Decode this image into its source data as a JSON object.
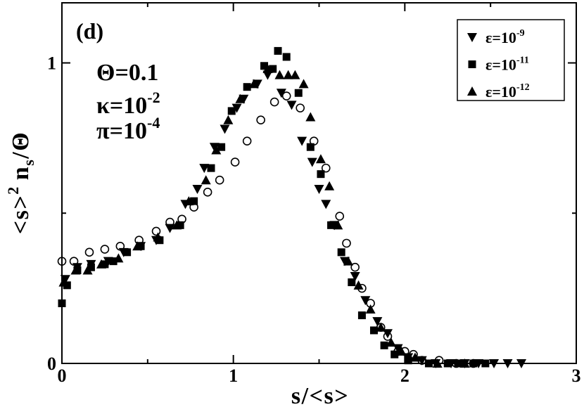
{
  "chart_data": {
    "type": "scatter",
    "xlabel": "s/<s>",
    "ylabel": {
      "part1": "<s>",
      "sup": "2",
      "part2": "n",
      "sub": "s",
      "part3": "/Θ"
    },
    "xlim": [
      0,
      3
    ],
    "ylim": [
      0,
      1.2
    ],
    "xticks": [
      {
        "value": 0,
        "label": "0"
      },
      {
        "value": 1,
        "label": "1"
      },
      {
        "value": 2,
        "label": "2"
      },
      {
        "value": 3,
        "label": "3"
      }
    ],
    "yticks": [
      {
        "value": 0,
        "label": "0"
      },
      {
        "value": 1,
        "label": "1"
      }
    ],
    "x_minor_ticks": [
      0.5,
      1.5,
      2.5
    ],
    "y_minor_ticks": [
      0.5
    ],
    "grid": false,
    "legend_position": "top-right",
    "marker_color": "#000000",
    "annotations": {
      "panel_label": "(d)",
      "theta": "Θ=0.1",
      "kappa": {
        "base": "κ=10",
        "exponent": "-2"
      },
      "pi": {
        "base": "π=10",
        "exponent": "-4"
      }
    },
    "series": [
      {
        "marker": "triangle-down",
        "label": {
          "base": "ε=10",
          "sup": "-9"
        },
        "points": [
          [
            0.02,
            0.28
          ],
          [
            0.09,
            0.32
          ],
          [
            0.17,
            0.33
          ],
          [
            0.27,
            0.34
          ],
          [
            0.36,
            0.37
          ],
          [
            0.46,
            0.39
          ],
          [
            0.55,
            0.41
          ],
          [
            0.63,
            0.45
          ],
          [
            0.72,
            0.53
          ],
          [
            0.79,
            0.58
          ],
          [
            0.83,
            0.65
          ],
          [
            0.89,
            0.72
          ],
          [
            0.95,
            0.78
          ],
          [
            1.02,
            0.85
          ],
          [
            1.06,
            0.88
          ],
          [
            1.14,
            0.93
          ],
          [
            1.2,
            0.96
          ],
          [
            1.28,
            0.9
          ],
          [
            1.34,
            0.86
          ],
          [
            1.4,
            0.74
          ],
          [
            1.46,
            0.67
          ],
          [
            1.5,
            0.58
          ],
          [
            1.54,
            0.53
          ],
          [
            1.59,
            0.46
          ],
          [
            1.65,
            0.34
          ],
          [
            1.71,
            0.29
          ],
          [
            1.77,
            0.21
          ],
          [
            1.84,
            0.14
          ],
          [
            1.9,
            0.1
          ],
          [
            1.96,
            0.05
          ],
          [
            2.02,
            0.02
          ],
          [
            2.1,
            0.01
          ],
          [
            2.18,
            0.0
          ],
          [
            2.27,
            0.0
          ],
          [
            2.35,
            0.0
          ],
          [
            2.43,
            0.0
          ],
          [
            2.52,
            0.0
          ],
          [
            2.6,
            0.0
          ],
          [
            2.68,
            0.0
          ]
        ]
      },
      {
        "marker": "square",
        "label": {
          "base": "ε=10",
          "sup": "-11"
        },
        "points": [
          [
            0.0,
            0.2
          ],
          [
            0.03,
            0.26
          ],
          [
            0.09,
            0.31
          ],
          [
            0.17,
            0.32
          ],
          [
            0.25,
            0.33
          ],
          [
            0.3,
            0.34
          ],
          [
            0.38,
            0.37
          ],
          [
            0.46,
            0.39
          ],
          [
            0.57,
            0.41
          ],
          [
            0.69,
            0.46
          ],
          [
            0.77,
            0.54
          ],
          [
            0.87,
            0.65
          ],
          [
            0.93,
            0.72
          ],
          [
            0.99,
            0.84
          ],
          [
            1.08,
            0.92
          ],
          [
            1.18,
            0.99
          ],
          [
            1.23,
            0.98
          ],
          [
            1.26,
            1.04
          ],
          [
            1.31,
            1.02
          ],
          [
            1.38,
            0.9
          ],
          [
            1.45,
            0.72
          ],
          [
            1.51,
            0.63
          ],
          [
            1.57,
            0.46
          ],
          [
            1.63,
            0.37
          ],
          [
            1.69,
            0.27
          ],
          [
            1.75,
            0.16
          ],
          [
            1.82,
            0.11
          ],
          [
            1.88,
            0.06
          ],
          [
            1.94,
            0.03
          ],
          [
            2.02,
            0.01
          ],
          [
            2.14,
            0.0
          ],
          [
            2.25,
            0.0
          ],
          [
            2.31,
            0.0
          ],
          [
            2.4,
            0.0
          ],
          [
            2.47,
            0.0
          ]
        ]
      },
      {
        "marker": "triangle-up",
        "label": {
          "base": "ε=10",
          "sup": "-12"
        },
        "points": [
          [
            0.01,
            0.27
          ],
          [
            0.08,
            0.31
          ],
          [
            0.15,
            0.31
          ],
          [
            0.23,
            0.33
          ],
          [
            0.33,
            0.35
          ],
          [
            0.44,
            0.39
          ],
          [
            0.56,
            0.42
          ],
          [
            0.67,
            0.46
          ],
          [
            0.74,
            0.54
          ],
          [
            0.84,
            0.61
          ],
          [
            0.9,
            0.71
          ],
          [
            0.97,
            0.81
          ],
          [
            1.04,
            0.88
          ],
          [
            1.12,
            0.93
          ],
          [
            1.2,
            0.98
          ],
          [
            1.27,
            0.96
          ],
          [
            1.32,
            0.96
          ],
          [
            1.36,
            0.96
          ],
          [
            1.41,
            0.93
          ],
          [
            1.45,
            0.82
          ],
          [
            1.51,
            0.68
          ],
          [
            1.56,
            0.59
          ],
          [
            1.61,
            0.46
          ],
          [
            1.67,
            0.34
          ],
          [
            1.73,
            0.26
          ],
          [
            1.8,
            0.18
          ],
          [
            1.86,
            0.12
          ],
          [
            1.92,
            0.07
          ],
          [
            1.98,
            0.04
          ],
          [
            2.06,
            0.02
          ],
          [
            2.19,
            0.0
          ],
          [
            2.35,
            0.0
          ]
        ]
      },
      {
        "marker": "open-circle",
        "points": [
          [
            0.0,
            0.34
          ],
          [
            0.07,
            0.34
          ],
          [
            0.16,
            0.37
          ],
          [
            0.25,
            0.38
          ],
          [
            0.34,
            0.39
          ],
          [
            0.45,
            0.41
          ],
          [
            0.55,
            0.44
          ],
          [
            0.63,
            0.47
          ],
          [
            0.7,
            0.48
          ],
          [
            0.77,
            0.52
          ],
          [
            0.85,
            0.57
          ],
          [
            0.92,
            0.61
          ],
          [
            1.01,
            0.67
          ],
          [
            1.08,
            0.74
          ],
          [
            1.16,
            0.81
          ],
          [
            1.24,
            0.87
          ],
          [
            1.31,
            0.89
          ],
          [
            1.39,
            0.85
          ],
          [
            1.47,
            0.74
          ],
          [
            1.54,
            0.65
          ],
          [
            1.62,
            0.49
          ],
          [
            1.66,
            0.4
          ],
          [
            1.71,
            0.32
          ],
          [
            1.75,
            0.25
          ],
          [
            1.8,
            0.2
          ],
          [
            1.86,
            0.12
          ],
          [
            1.9,
            0.09
          ],
          [
            1.96,
            0.04
          ],
          [
            2.0,
            0.04
          ],
          [
            2.05,
            0.03
          ],
          [
            2.1,
            0.01
          ],
          [
            2.2,
            0.01
          ],
          [
            2.3,
            0.0
          ],
          [
            2.4,
            0.0
          ]
        ]
      }
    ]
  }
}
